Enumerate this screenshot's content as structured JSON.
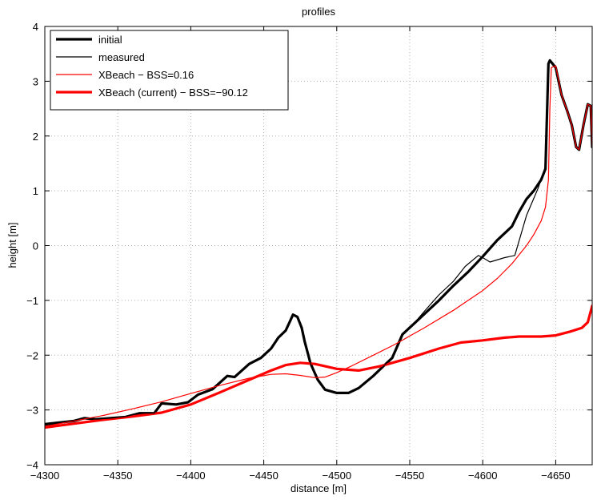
{
  "chart_data": {
    "type": "line",
    "title": "profiles",
    "xlabel": "distance [m]",
    "ylabel": "height [m]",
    "xlim": [
      -4300,
      -4675
    ],
    "x_reversed": true,
    "ylim": [
      -4,
      4
    ],
    "xticks": [
      -4300,
      -4350,
      -4400,
      -4450,
      -4500,
      -4550,
      -4600,
      -4650
    ],
    "yticks": [
      4,
      3,
      2,
      1,
      0,
      -1,
      -2,
      -3,
      -4
    ],
    "xtick_labels": [
      "−4300",
      "−4350",
      "−4400",
      "−4450",
      "−4500",
      "−4550",
      "−4600",
      "−4650"
    ],
    "ytick_labels": [
      "4",
      "3",
      "2",
      "1",
      "0",
      "−1",
      "−2",
      "−3",
      "−4"
    ],
    "grid": true,
    "legend_position": "top-left",
    "series": [
      {
        "name": "initial",
        "color": "#000000",
        "width": "thick",
        "points": [
          [
            -4300,
            -3.26
          ],
          [
            -4310,
            -3.23
          ],
          [
            -4320,
            -3.2
          ],
          [
            -4327,
            -3.15
          ],
          [
            -4335,
            -3.17
          ],
          [
            -4345,
            -3.15
          ],
          [
            -4355,
            -3.13
          ],
          [
            -4365,
            -3.06
          ],
          [
            -4375,
            -3.06
          ],
          [
            -4380,
            -2.88
          ],
          [
            -4390,
            -2.9
          ],
          [
            -4398,
            -2.86
          ],
          [
            -4405,
            -2.72
          ],
          [
            -4415,
            -2.62
          ],
          [
            -4425,
            -2.38
          ],
          [
            -4430,
            -2.4
          ],
          [
            -4440,
            -2.16
          ],
          [
            -4448,
            -2.05
          ],
          [
            -4455,
            -1.88
          ],
          [
            -4460,
            -1.68
          ],
          [
            -4465,
            -1.55
          ],
          [
            -4468,
            -1.38
          ],
          [
            -4470,
            -1.26
          ],
          [
            -4473,
            -1.3
          ],
          [
            -4476,
            -1.5
          ],
          [
            -4478,
            -1.75
          ],
          [
            -4482,
            -2.15
          ],
          [
            -4487,
            -2.45
          ],
          [
            -4492,
            -2.63
          ],
          [
            -4500,
            -2.69
          ],
          [
            -4508,
            -2.69
          ],
          [
            -4515,
            -2.6
          ],
          [
            -4525,
            -2.38
          ],
          [
            -4532,
            -2.2
          ],
          [
            -4538,
            -2.05
          ],
          [
            -4545,
            -1.62
          ],
          [
            -4552,
            -1.45
          ],
          [
            -4560,
            -1.25
          ],
          [
            -4570,
            -1.0
          ],
          [
            -4580,
            -0.73
          ],
          [
            -4590,
            -0.48
          ],
          [
            -4600,
            -0.2
          ],
          [
            -4610,
            0.1
          ],
          [
            -4620,
            0.35
          ],
          [
            -4625,
            0.62
          ],
          [
            -4630,
            0.85
          ],
          [
            -4635,
            1.0
          ],
          [
            -4640,
            1.2
          ],
          [
            -4643,
            1.4
          ],
          [
            -4645,
            3.32
          ],
          [
            -4646,
            3.38
          ],
          [
            -4650,
            3.25
          ],
          [
            -4654,
            2.75
          ],
          [
            -4658,
            2.45
          ],
          [
            -4661,
            2.2
          ],
          [
            -4664,
            1.8
          ],
          [
            -4666,
            1.75
          ],
          [
            -4669,
            2.2
          ],
          [
            -4672,
            2.58
          ],
          [
            -4674,
            2.55
          ],
          [
            -4675,
            1.8
          ]
        ]
      },
      {
        "name": "measured",
        "color": "#000000",
        "width": "thin",
        "points": [
          [
            -4300,
            -3.28
          ],
          [
            -4310,
            -3.24
          ],
          [
            -4320,
            -3.2
          ],
          [
            -4327,
            -3.15
          ],
          [
            -4335,
            -3.17
          ],
          [
            -4345,
            -3.15
          ],
          [
            -4355,
            -3.12
          ],
          [
            -4365,
            -3.06
          ],
          [
            -4375,
            -3.06
          ],
          [
            -4380,
            -2.88
          ],
          [
            -4390,
            -2.9
          ],
          [
            -4398,
            -2.86
          ],
          [
            -4405,
            -2.72
          ],
          [
            -4415,
            -2.62
          ],
          [
            -4425,
            -2.38
          ],
          [
            -4430,
            -2.4
          ],
          [
            -4440,
            -2.16
          ],
          [
            -4448,
            -2.05
          ],
          [
            -4455,
            -1.88
          ],
          [
            -4460,
            -1.68
          ],
          [
            -4465,
            -1.55
          ],
          [
            -4468,
            -1.38
          ],
          [
            -4470,
            -1.26
          ],
          [
            -4473,
            -1.3
          ],
          [
            -4476,
            -1.5
          ],
          [
            -4478,
            -1.75
          ],
          [
            -4482,
            -2.15
          ],
          [
            -4487,
            -2.45
          ],
          [
            -4492,
            -2.63
          ],
          [
            -4500,
            -2.69
          ],
          [
            -4508,
            -2.69
          ],
          [
            -4515,
            -2.6
          ],
          [
            -4525,
            -2.38
          ],
          [
            -4532,
            -2.2
          ],
          [
            -4538,
            -2.05
          ],
          [
            -4545,
            -1.62
          ],
          [
            -4552,
            -1.45
          ],
          [
            -4560,
            -1.2
          ],
          [
            -4570,
            -0.9
          ],
          [
            -4580,
            -0.65
          ],
          [
            -4588,
            -0.38
          ],
          [
            -4597,
            -0.18
          ],
          [
            -4600,
            -0.22
          ],
          [
            -4605,
            -0.3
          ],
          [
            -4615,
            -0.22
          ],
          [
            -4622,
            -0.18
          ],
          [
            -4630,
            0.55
          ],
          [
            -4638,
            1.05
          ],
          [
            -4643,
            1.45
          ],
          [
            -4645,
            3.3
          ],
          [
            -4646,
            3.38
          ],
          [
            -4650,
            3.25
          ],
          [
            -4654,
            2.75
          ],
          [
            -4658,
            2.45
          ],
          [
            -4661,
            2.2
          ],
          [
            -4664,
            1.8
          ],
          [
            -4666,
            1.75
          ],
          [
            -4669,
            2.2
          ],
          [
            -4672,
            2.58
          ],
          [
            -4674,
            2.55
          ],
          [
            -4675,
            1.8
          ]
        ]
      },
      {
        "name": "XBeach − BSS=0.16",
        "color": "#ff0000",
        "width": "thin",
        "points": [
          [
            -4300,
            -3.3
          ],
          [
            -4320,
            -3.2
          ],
          [
            -4340,
            -3.1
          ],
          [
            -4360,
            -2.98
          ],
          [
            -4380,
            -2.85
          ],
          [
            -4400,
            -2.7
          ],
          [
            -4420,
            -2.55
          ],
          [
            -4440,
            -2.42
          ],
          [
            -4455,
            -2.35
          ],
          [
            -4465,
            -2.34
          ],
          [
            -4475,
            -2.37
          ],
          [
            -4485,
            -2.41
          ],
          [
            -4492,
            -2.4
          ],
          [
            -4500,
            -2.32
          ],
          [
            -4510,
            -2.2
          ],
          [
            -4525,
            -2.0
          ],
          [
            -4540,
            -1.8
          ],
          [
            -4560,
            -1.5
          ],
          [
            -4580,
            -1.18
          ],
          [
            -4600,
            -0.82
          ],
          [
            -4610,
            -0.6
          ],
          [
            -4620,
            -0.33
          ],
          [
            -4630,
            0.0
          ],
          [
            -4635,
            0.2
          ],
          [
            -4640,
            0.45
          ],
          [
            -4643,
            0.7
          ],
          [
            -4645,
            1.2
          ],
          [
            -4646,
            2.5
          ],
          [
            -4647,
            3.25
          ],
          [
            -4650,
            3.28
          ],
          [
            -4654,
            2.75
          ],
          [
            -4658,
            2.45
          ],
          [
            -4661,
            2.2
          ],
          [
            -4664,
            1.8
          ],
          [
            -4666,
            1.75
          ],
          [
            -4669,
            2.2
          ],
          [
            -4672,
            2.58
          ],
          [
            -4674,
            2.55
          ],
          [
            -4675,
            1.8
          ]
        ]
      },
      {
        "name": "XBeach (current) − BSS=−90.12",
        "color": "#ff0000",
        "width": "thick",
        "points": [
          [
            -4300,
            -3.32
          ],
          [
            -4320,
            -3.25
          ],
          [
            -4340,
            -3.18
          ],
          [
            -4360,
            -3.12
          ],
          [
            -4380,
            -3.05
          ],
          [
            -4400,
            -2.9
          ],
          [
            -4420,
            -2.68
          ],
          [
            -4440,
            -2.45
          ],
          [
            -4455,
            -2.28
          ],
          [
            -4465,
            -2.18
          ],
          [
            -4475,
            -2.14
          ],
          [
            -4485,
            -2.16
          ],
          [
            -4500,
            -2.25
          ],
          [
            -4515,
            -2.28
          ],
          [
            -4530,
            -2.2
          ],
          [
            -4550,
            -2.05
          ],
          [
            -4570,
            -1.88
          ],
          [
            -4585,
            -1.77
          ],
          [
            -4600,
            -1.73
          ],
          [
            -4615,
            -1.68
          ],
          [
            -4625,
            -1.66
          ],
          [
            -4640,
            -1.66
          ],
          [
            -4650,
            -1.64
          ],
          [
            -4660,
            -1.57
          ],
          [
            -4668,
            -1.5
          ],
          [
            -4672,
            -1.4
          ],
          [
            -4675,
            -1.1
          ]
        ]
      }
    ]
  }
}
